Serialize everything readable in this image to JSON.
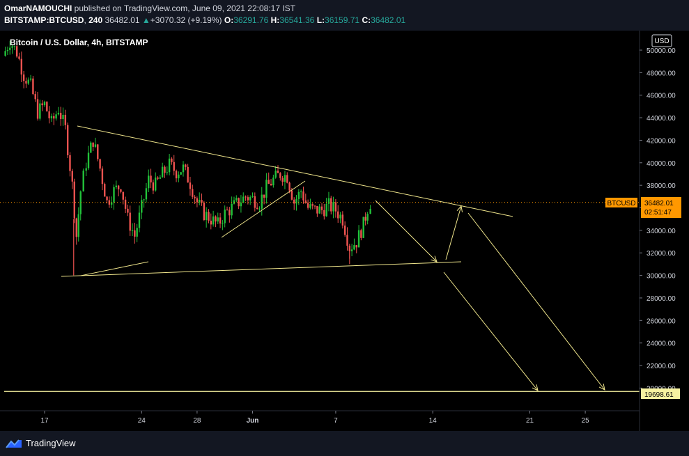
{
  "header": {
    "author": "OmarNAMOUCHI",
    "published_text": " published on TradingView.com, June 09, 2021 22:08:17 IST",
    "symbol": "BITSTAMP:BTCUSD",
    "interval": "240",
    "last": "36482.01",
    "change": "+3070.32 (+9.19%)",
    "o_label": "O:",
    "o_value": "36291.76",
    "h_label": "H:",
    "h_value": "36541.36",
    "l_label": "L:",
    "l_value": "36159.71",
    "c_label": "C:",
    "c_value": "36482.01"
  },
  "legend": {
    "title": "Bitcoin / U.S. Dollar, 4h, BITSTAMP"
  },
  "axis": {
    "currency_label": "USD"
  },
  "price_tag": {
    "symbol": "BTCUSD",
    "price": "36482.01",
    "countdown": "02:51:47"
  },
  "level_tag": {
    "price": "19698.61"
  },
  "footer": {
    "brand": "TradingView"
  },
  "colors": {
    "up": "#26a69a",
    "up_candle": "#22c33a",
    "down": "#ef5350",
    "drawing": "#f0e68c",
    "level_line": "#f7f3a1",
    "price_tag_bg": "#ff9800",
    "background": "#000000",
    "panel": "#131722"
  },
  "chart_data": {
    "type": "candlestick",
    "title": "Bitcoin / U.S. Dollar, 4h, BITSTAMP",
    "ylabel": "USD",
    "ylim": [
      18600,
      51500
    ],
    "y_ticks": [
      50000,
      48000,
      46000,
      44000,
      42000,
      40000,
      38000,
      36000,
      34000,
      32000,
      30000,
      28000,
      26000,
      24000,
      22000,
      20000
    ],
    "x_ticks": [
      "17",
      "24",
      "28",
      "Jun",
      "7",
      "14",
      "21",
      "25"
    ],
    "x_tick_dates": [
      "2021-05-17",
      "2021-05-24",
      "2021-05-28",
      "2021-06-01",
      "2021-06-07",
      "2021-06-14",
      "2021-06-21",
      "2021-06-25"
    ],
    "close_path": [
      [
        "2021-05-14",
        49500
      ],
      [
        "2021-05-14.5",
        50800
      ],
      [
        "2021-05-15",
        49800
      ],
      [
        "2021-05-15.5",
        47800
      ],
      [
        "2021-05-16",
        46800
      ],
      [
        "2021-05-16.5",
        44500
      ],
      [
        "2021-05-17",
        45200
      ],
      [
        "2021-05-17.5",
        43500
      ],
      [
        "2021-05-18",
        44800
      ],
      [
        "2021-05-18.5",
        43000
      ],
      [
        "2021-05-19",
        38000
      ],
      [
        "2021-05-19.3",
        33500
      ],
      [
        "2021-05-19.6",
        37500
      ],
      [
        "2021-05-20",
        40000
      ],
      [
        "2021-05-20.5",
        42000
      ],
      [
        "2021-05-21",
        39500
      ],
      [
        "2021-05-21.5",
        36500
      ],
      [
        "2021-05-22",
        37500
      ],
      [
        "2021-05-22.5",
        38000
      ],
      [
        "2021-05-23",
        35000
      ],
      [
        "2021-05-23.5",
        33500
      ],
      [
        "2021-05-24",
        36000
      ],
      [
        "2021-05-24.5",
        38500
      ],
      [
        "2021-05-25",
        38000
      ],
      [
        "2021-05-25.5",
        39000
      ],
      [
        "2021-05-26",
        39800
      ],
      [
        "2021-05-26.5",
        39200
      ],
      [
        "2021-05-27",
        39500
      ],
      [
        "2021-05-27.5",
        38200
      ],
      [
        "2021-05-28",
        36500
      ],
      [
        "2021-05-28.5",
        35500
      ],
      [
        "2021-05-29",
        35000
      ],
      [
        "2021-05-29.5",
        34500
      ],
      [
        "2021-05-30",
        35500
      ],
      [
        "2021-05-30.5",
        36000
      ],
      [
        "2021-05-31",
        36500
      ],
      [
        "2021-05-31.5",
        37000
      ],
      [
        "2021-06-01",
        36800
      ],
      [
        "2021-06-01.5",
        36500
      ],
      [
        "2021-06-02",
        37800
      ],
      [
        "2021-06-02.5",
        38500
      ],
      [
        "2021-06-03",
        39000
      ],
      [
        "2021-06-03.5",
        38800
      ],
      [
        "2021-06-04",
        36500
      ],
      [
        "2021-06-04.5",
        37500
      ],
      [
        "2021-06-05",
        36000
      ],
      [
        "2021-06-05.5",
        35800
      ],
      [
        "2021-06-06",
        35800
      ],
      [
        "2021-06-06.5",
        36200
      ],
      [
        "2021-06-07",
        35800
      ],
      [
        "2021-06-07.5",
        35000
      ],
      [
        "2021-06-08",
        32500
      ],
      [
        "2021-06-08.5",
        33000
      ],
      [
        "2021-06-09",
        34500
      ],
      [
        "2021-06-09.3",
        36000
      ],
      [
        "2021-06-09.5",
        36482
      ]
    ],
    "last_price": 36482.01,
    "horizontal_level": 19698.61,
    "annotations": "hand-drawn trend lines, triangle pattern and projected arrows"
  }
}
